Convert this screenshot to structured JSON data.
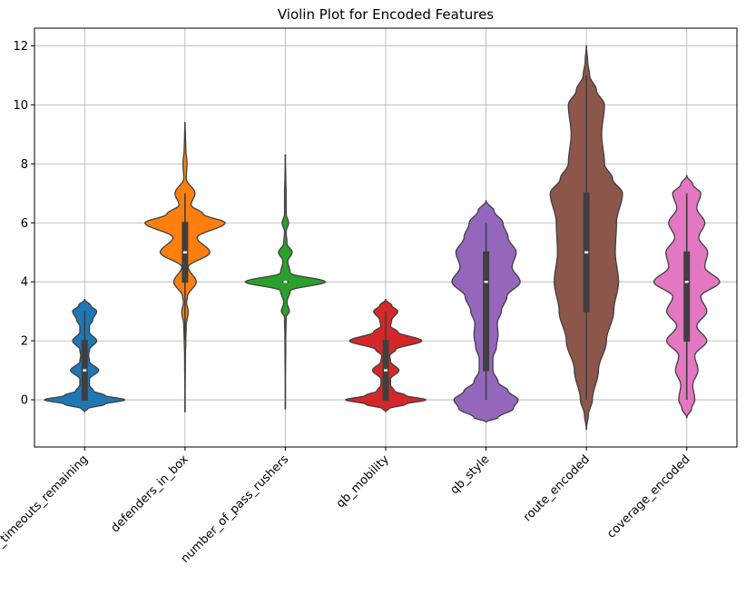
{
  "chart_data": {
    "type": "violin",
    "title": "Violin Plot for Encoded Features",
    "xlabel": "",
    "ylabel": "",
    "ylim": [
      -1.6,
      12.6
    ],
    "yticks": [
      0,
      2,
      4,
      6,
      8,
      10,
      12
    ],
    "grid": true,
    "categories": [
      "posteam_timeouts_remaining",
      "defenders_in_box",
      "number_of_pass_rushers",
      "qb_mobility",
      "qb_style",
      "route_encoded",
      "coverage_encoded"
    ],
    "series": [
      {
        "category": "posteam_timeouts_remaining",
        "color": "#1f77b4",
        "min": 0,
        "q1": 0,
        "median": 1,
        "q3": 2,
        "max": 3,
        "kde_extent": [
          -0.4,
          3.4
        ],
        "density_profile": [
          [
            -0.4,
            0
          ],
          [
            -0.3,
            0.08
          ],
          [
            -0.15,
            0.5
          ],
          [
            0,
            1.0
          ],
          [
            0.15,
            0.5
          ],
          [
            0.3,
            0.22
          ],
          [
            0.5,
            0.12
          ],
          [
            0.7,
            0.12
          ],
          [
            1.0,
            0.35
          ],
          [
            1.3,
            0.12
          ],
          [
            1.5,
            0.1
          ],
          [
            1.7,
            0.12
          ],
          [
            2.0,
            0.3
          ],
          [
            2.3,
            0.12
          ],
          [
            2.5,
            0.12
          ],
          [
            2.7,
            0.2
          ],
          [
            3.0,
            0.3
          ],
          [
            3.2,
            0.15
          ],
          [
            3.4,
            0
          ]
        ]
      },
      {
        "category": "defenders_in_box",
        "color": "#ff7f0e",
        "min": 2,
        "q1": 4,
        "median": 5,
        "q3": 6,
        "max": 7,
        "kde_extent": [
          -0.4,
          9.4
        ],
        "density_profile": [
          [
            -0.4,
            0
          ],
          [
            1.5,
            0.01
          ],
          [
            2.0,
            0.02
          ],
          [
            2.5,
            0.03
          ],
          [
            3.0,
            0.08
          ],
          [
            3.3,
            0.04
          ],
          [
            3.5,
            0.06
          ],
          [
            4.0,
            0.28
          ],
          [
            4.5,
            0.08
          ],
          [
            5.0,
            0.62
          ],
          [
            5.5,
            0.3
          ],
          [
            6.0,
            1.0
          ],
          [
            6.3,
            0.45
          ],
          [
            6.6,
            0.15
          ],
          [
            7.0,
            0.25
          ],
          [
            7.5,
            0.03
          ],
          [
            8.0,
            0.05
          ],
          [
            8.5,
            0.02
          ],
          [
            9.0,
            0.01
          ],
          [
            9.4,
            0
          ]
        ]
      },
      {
        "category": "number_of_pass_rushers",
        "color": "#2ca02c",
        "min": 4,
        "q1": 4,
        "median": 4,
        "q3": 4,
        "max": 4,
        "kde_extent": [
          -0.3,
          8.3
        ],
        "density_profile": [
          [
            -0.3,
            0
          ],
          [
            2.0,
            0.01
          ],
          [
            2.8,
            0.02
          ],
          [
            3.0,
            0.1
          ],
          [
            3.3,
            0.04
          ],
          [
            3.7,
            0.12
          ],
          [
            4.0,
            1.0
          ],
          [
            4.3,
            0.12
          ],
          [
            4.7,
            0.06
          ],
          [
            5.0,
            0.17
          ],
          [
            5.3,
            0.04
          ],
          [
            5.7,
            0.02
          ],
          [
            6.0,
            0.08
          ],
          [
            6.3,
            0.02
          ],
          [
            7.0,
            0.02
          ],
          [
            7.5,
            0.01
          ],
          [
            8.3,
            0
          ]
        ]
      },
      {
        "category": "qb_mobility",
        "color": "#d62728",
        "min": 0,
        "q1": 0,
        "median": 1,
        "q3": 2,
        "max": 3,
        "kde_extent": [
          -0.4,
          3.4
        ],
        "density_profile": [
          [
            -0.4,
            0
          ],
          [
            -0.3,
            0.08
          ],
          [
            -0.15,
            0.5
          ],
          [
            0,
            1.0
          ],
          [
            0.15,
            0.5
          ],
          [
            0.3,
            0.22
          ],
          [
            0.5,
            0.12
          ],
          [
            0.7,
            0.12
          ],
          [
            1.0,
            0.33
          ],
          [
            1.3,
            0.12
          ],
          [
            1.5,
            0.1
          ],
          [
            1.7,
            0.25
          ],
          [
            2.0,
            0.9
          ],
          [
            2.3,
            0.3
          ],
          [
            2.5,
            0.12
          ],
          [
            2.7,
            0.15
          ],
          [
            3.0,
            0.3
          ],
          [
            3.2,
            0.15
          ],
          [
            3.4,
            0
          ]
        ]
      },
      {
        "category": "qb_style",
        "color": "#9467bd",
        "min": 0,
        "q1": 1,
        "median": 4,
        "q3": 5,
        "max": 6,
        "kde_extent": [
          -0.75,
          6.75
        ],
        "density_profile": [
          [
            -0.75,
            0
          ],
          [
            -0.6,
            0.3
          ],
          [
            -0.3,
            0.68
          ],
          [
            0,
            0.8
          ],
          [
            0.3,
            0.55
          ],
          [
            0.6,
            0.3
          ],
          [
            1.0,
            0.17
          ],
          [
            1.4,
            0.17
          ],
          [
            1.8,
            0.26
          ],
          [
            2.2,
            0.3
          ],
          [
            2.6,
            0.28
          ],
          [
            3.0,
            0.38
          ],
          [
            3.5,
            0.52
          ],
          [
            4.0,
            0.85
          ],
          [
            4.5,
            0.65
          ],
          [
            5.0,
            0.75
          ],
          [
            5.5,
            0.55
          ],
          [
            6.0,
            0.42
          ],
          [
            6.4,
            0.2
          ],
          [
            6.75,
            0
          ]
        ]
      },
      {
        "category": "route_encoded",
        "color": "#8c564b",
        "min": 0,
        "q1": 3,
        "median": 5,
        "q3": 7,
        "max": 11,
        "kde_extent": [
          -1.0,
          12.0
        ],
        "density_profile": [
          [
            -1.0,
            0
          ],
          [
            -0.5,
            0.05
          ],
          [
            0,
            0.15
          ],
          [
            1.0,
            0.3
          ],
          [
            2.0,
            0.5
          ],
          [
            3.0,
            0.68
          ],
          [
            4.0,
            0.8
          ],
          [
            5.0,
            0.72
          ],
          [
            6.0,
            0.75
          ],
          [
            7.0,
            0.9
          ],
          [
            7.5,
            0.65
          ],
          [
            8.0,
            0.45
          ],
          [
            9.0,
            0.38
          ],
          [
            10.0,
            0.45
          ],
          [
            10.5,
            0.25
          ],
          [
            11.0,
            0.08
          ],
          [
            11.5,
            0.03
          ],
          [
            12.0,
            0
          ]
        ]
      },
      {
        "category": "coverage_encoded",
        "color": "#e377c2",
        "min": 0,
        "q1": 2,
        "median": 4,
        "q3": 5,
        "max": 7,
        "kde_extent": [
          -0.6,
          7.6
        ],
        "density_profile": [
          [
            -0.6,
            0
          ],
          [
            -0.3,
            0.12
          ],
          [
            0,
            0.2
          ],
          [
            0.5,
            0.15
          ],
          [
            1.0,
            0.28
          ],
          [
            1.5,
            0.2
          ],
          [
            2.0,
            0.5
          ],
          [
            2.5,
            0.25
          ],
          [
            3.0,
            0.5
          ],
          [
            3.5,
            0.35
          ],
          [
            4.0,
            0.82
          ],
          [
            4.5,
            0.45
          ],
          [
            5.0,
            0.52
          ],
          [
            5.5,
            0.3
          ],
          [
            6.0,
            0.45
          ],
          [
            6.5,
            0.25
          ],
          [
            7.0,
            0.35
          ],
          [
            7.3,
            0.15
          ],
          [
            7.6,
            0
          ]
        ]
      }
    ]
  }
}
